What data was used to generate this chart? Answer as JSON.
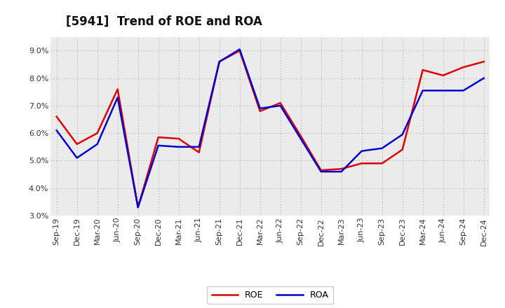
{
  "title": "[5941]  Trend of ROE and ROA",
  "labels": [
    "Sep-19",
    "Dec-19",
    "Mar-20",
    "Jun-20",
    "Sep-20",
    "Dec-20",
    "Mar-21",
    "Jun-21",
    "Sep-21",
    "Dec-21",
    "Mar-22",
    "Jun-22",
    "Sep-22",
    "Dec-22",
    "Mar-23",
    "Jun-23",
    "Sep-23",
    "Dec-23",
    "Mar-24",
    "Jun-24",
    "Sep-24",
    "Dec-24"
  ],
  "ROE": [
    6.6,
    5.6,
    6.0,
    7.6,
    3.3,
    5.85,
    5.8,
    5.3,
    8.6,
    9.0,
    6.8,
    7.1,
    5.9,
    4.65,
    4.7,
    4.9,
    4.9,
    5.4,
    8.3,
    8.1,
    8.4,
    8.6
  ],
  "ROA": [
    6.1,
    5.1,
    5.6,
    7.3,
    3.3,
    5.55,
    5.5,
    5.5,
    8.6,
    9.05,
    6.9,
    7.0,
    5.8,
    4.6,
    4.6,
    5.35,
    5.45,
    5.95,
    7.55,
    7.55,
    7.55,
    8.0
  ],
  "ROE_color": "#dd0000",
  "ROA_color": "#0000cc",
  "ylim": [
    3.0,
    9.5
  ],
  "yticks": [
    3.0,
    4.0,
    5.0,
    6.0,
    7.0,
    8.0,
    9.0
  ],
  "bg_color": "#ffffff",
  "plot_bg_color": "#ebebeb",
  "grid_color": "#999999",
  "linewidth": 1.8,
  "title_fontsize": 12,
  "tick_fontsize": 8,
  "legend_fontsize": 9
}
